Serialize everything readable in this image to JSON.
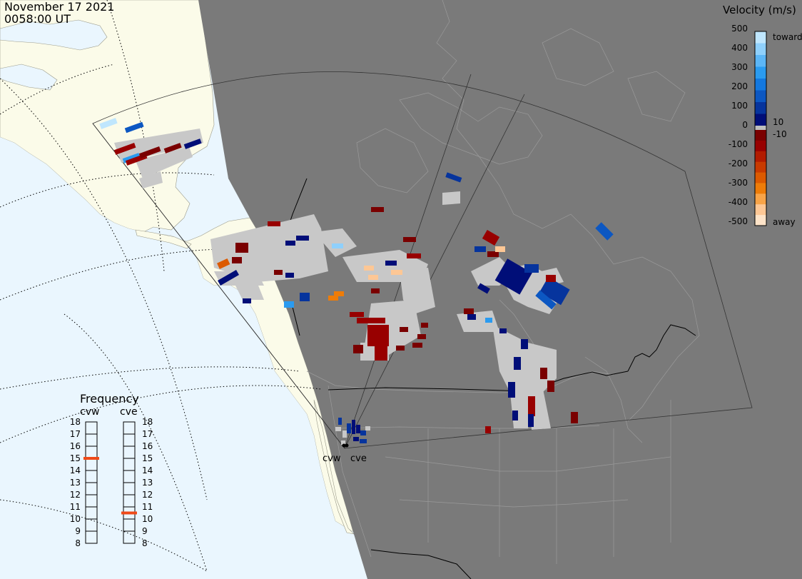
{
  "header": {
    "date": "November 17 2021",
    "time": "0058:00 UT"
  },
  "colorbar": {
    "title": "Velocity (m/s)",
    "ticks": [
      "500",
      "400",
      "300",
      "200",
      "100",
      "10",
      "0",
      "-10",
      "-100",
      "-200",
      "-300",
      "-400",
      "-500"
    ],
    "label_toward": "toward",
    "label_away": "away",
    "toward_colors": [
      "#bfe6fd",
      "#8fd0fb",
      "#5cb6f6",
      "#2a9bf0",
      "#1378df",
      "#0c57c2",
      "#06349d",
      "#000e78"
    ],
    "away_colors": [
      "#7a0000",
      "#980000",
      "#b21b00",
      "#c83a00",
      "#dc5a00",
      "#ee7c08",
      "#f8a448",
      "#fdc795",
      "#fde3c8"
    ]
  },
  "frequency": {
    "title": "Frequency",
    "radars": [
      {
        "name": "cvw",
        "mhz": 15.0,
        "color": "#ef4a18"
      },
      {
        "name": "cve",
        "mhz": 10.5,
        "color": "#ef4a18"
      }
    ],
    "scale": [
      "18",
      "17",
      "16",
      "15",
      "14",
      "13",
      "12",
      "11",
      "10",
      "9",
      "8"
    ]
  },
  "radar_sites": [
    "cvw",
    "cve"
  ],
  "map_colors": {
    "night": "#7a7a7a",
    "day_land": "#fbfbe9",
    "day_ocean": "#eaf6fe",
    "ground_scatter": "#c8c8c8"
  }
}
